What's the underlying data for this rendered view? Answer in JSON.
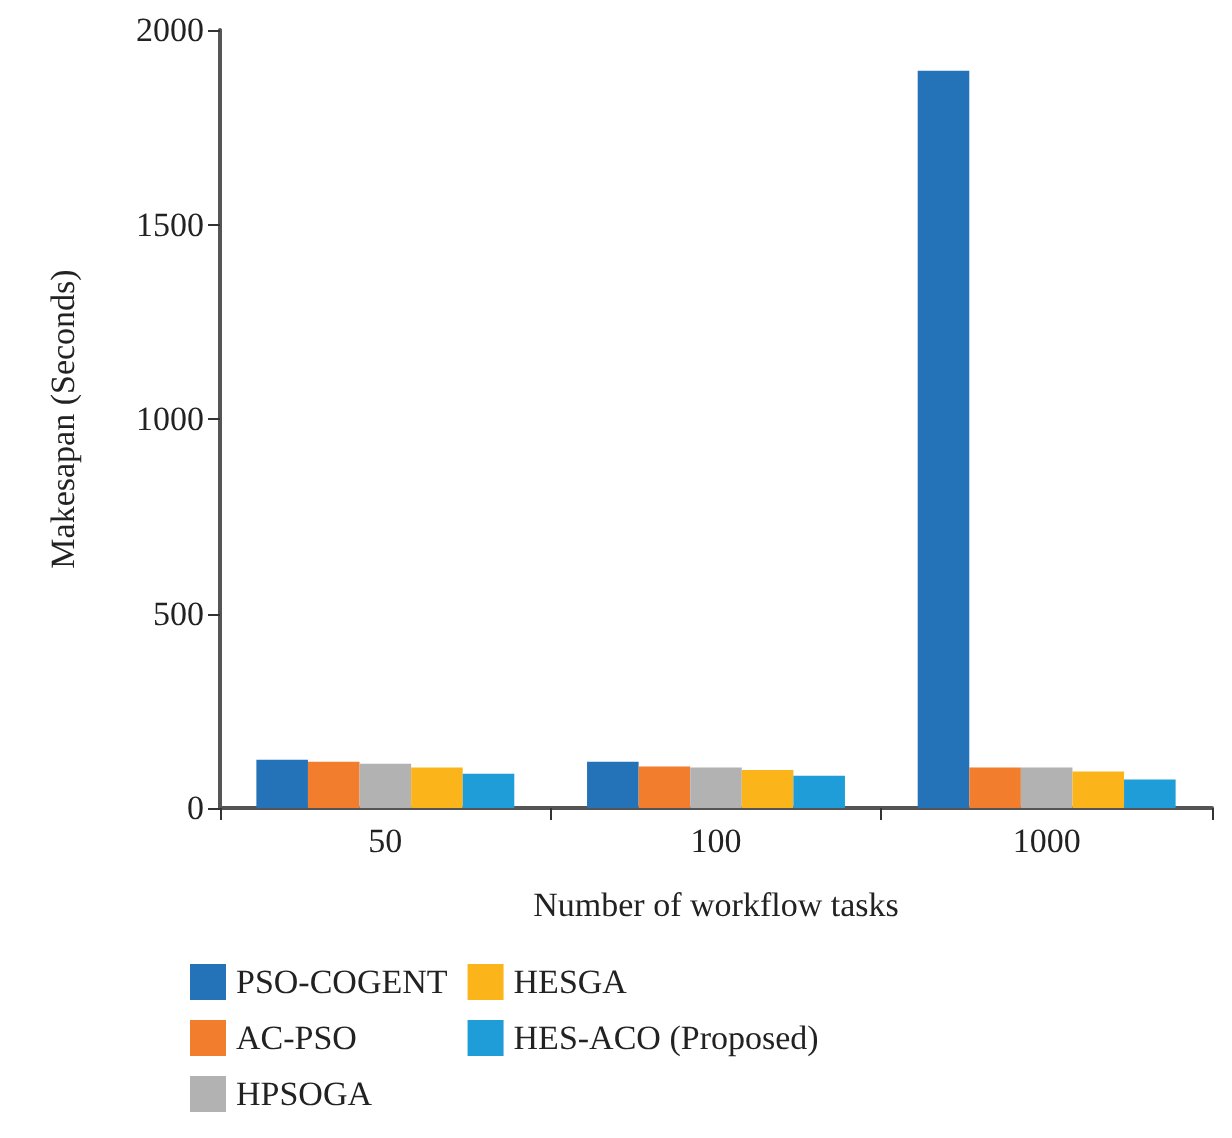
{
  "chart_data": {
    "type": "bar",
    "xlabel": "Number of workflow tasks",
    "ylabel": "Makesapan (Seconds)",
    "categories": [
      "50",
      "100",
      "1000"
    ],
    "series": [
      {
        "name": "PSO-COGENT",
        "color": "#2473b9",
        "values": [
          124,
          119,
          1895
        ]
      },
      {
        "name": "AC-PSO",
        "color": "#f27d2d",
        "values": [
          119,
          107,
          104
        ]
      },
      {
        "name": "HPSOGA",
        "color": "#b2b2b2",
        "values": [
          114,
          104,
          104
        ]
      },
      {
        "name": "HESGA",
        "color": "#fbb51b",
        "values": [
          104,
          98,
          94
        ]
      },
      {
        "name": "HES-ACO (Proposed)",
        "color": "#1e9dd9",
        "values": [
          88,
          83,
          73
        ]
      }
    ],
    "ylim": [
      0,
      2000
    ],
    "yticks": [
      0,
      500,
      1000,
      1500,
      2000
    ],
    "grid": false,
    "legend": "bottom"
  }
}
